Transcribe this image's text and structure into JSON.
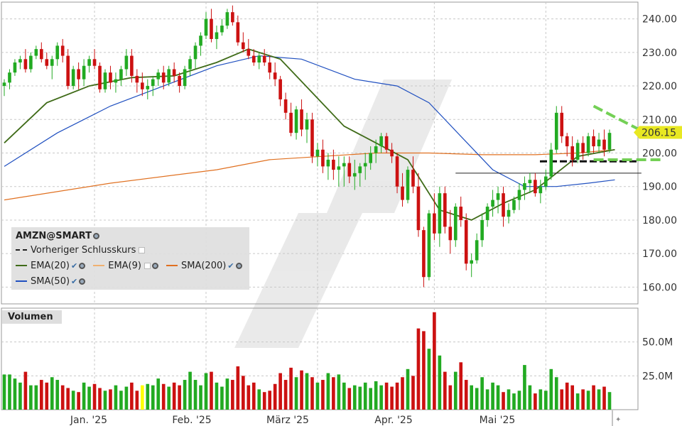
{
  "symbol": "AMZN@SMART",
  "volume_title": "Volumen",
  "last_price_label": "206.15",
  "legend": {
    "prev_close": "Vorheriger Schlusskurs",
    "ema20": "EMA(20)",
    "ema9": "EMA(9)",
    "sma200": "SMA(200)",
    "sma50": "SMA(50)"
  },
  "colors": {
    "up": "#22aa22",
    "down": "#cc1111",
    "ema20": "#3f6b18",
    "ema9": "#f0b070",
    "sma200": "#e07020",
    "sma50": "#2050c0",
    "trend": "#66cc44",
    "highlight": "#ffff00"
  },
  "chart_data": {
    "type": "candlestick",
    "price_ylim": [
      155,
      245
    ],
    "price_ticks": [
      "240.00",
      "230.00",
      "220.00",
      "210.00",
      "200.00",
      "190.00",
      "180.00",
      "170.00",
      "160.00"
    ],
    "volume_ticks": [
      "50.0M",
      "25.0M"
    ],
    "volume_ylim": [
      0,
      75
    ],
    "x_labels": [
      "Jan. '25",
      "Feb. '25",
      "März '25",
      "Apr. '25",
      "Mai '25"
    ],
    "grid": true,
    "prev_close": 197.5,
    "last_price": 206.15,
    "candles": [
      [
        220,
        222,
        217,
        221,
        26
      ],
      [
        221,
        225,
        219,
        224,
        26
      ],
      [
        224,
        228,
        223,
        227,
        23
      ],
      [
        227,
        229,
        225,
        228,
        20
      ],
      [
        228,
        231,
        224,
        225,
        28
      ],
      [
        225,
        230,
        224,
        229,
        18
      ],
      [
        229,
        232,
        228,
        231,
        18
      ],
      [
        231,
        233,
        227,
        228,
        22
      ],
      [
        228,
        230,
        225,
        226,
        20
      ],
      [
        226,
        229,
        222,
        228,
        24
      ],
      [
        228,
        233,
        226,
        232,
        22
      ],
      [
        232,
        234,
        227,
        229,
        18
      ],
      [
        229,
        231,
        219,
        220,
        16
      ],
      [
        220,
        226,
        219,
        225,
        14
      ],
      [
        225,
        227,
        219,
        222,
        13
      ],
      [
        222,
        228,
        220,
        226,
        20
      ],
      [
        226,
        229,
        224,
        228,
        17
      ],
      [
        228,
        231,
        225,
        226,
        19
      ],
      [
        226,
        227,
        218,
        219,
        16
      ],
      [
        219,
        225,
        218,
        224,
        14
      ],
      [
        224,
        226,
        219,
        221,
        15
      ],
      [
        221,
        224,
        218,
        222,
        18
      ],
      [
        222,
        226,
        220,
        225,
        14
      ],
      [
        225,
        231,
        223,
        229,
        17
      ],
      [
        229,
        231,
        221,
        223,
        20
      ],
      [
        223,
        225,
        218,
        221,
        14
      ],
      [
        221,
        224,
        217,
        219,
        18
      ],
      [
        219,
        222,
        216,
        220,
        19
      ],
      [
        220,
        223,
        217,
        222,
        18
      ],
      [
        222,
        225,
        220,
        224,
        23
      ],
      [
        224,
        226,
        219,
        221,
        19
      ],
      [
        221,
        226,
        220,
        225,
        17
      ],
      [
        225,
        227,
        221,
        223,
        20
      ],
      [
        223,
        224,
        218,
        220,
        18
      ],
      [
        220,
        226,
        219,
        225,
        22
      ],
      [
        225,
        229,
        223,
        228,
        28
      ],
      [
        228,
        233,
        225,
        232,
        22
      ],
      [
        232,
        236,
        229,
        235,
        18
      ],
      [
        235,
        242,
        234,
        240,
        27
      ],
      [
        240,
        243,
        233,
        234,
        28
      ],
      [
        234,
        238,
        231,
        236,
        20
      ],
      [
        236,
        240,
        235,
        238,
        17
      ],
      [
        238,
        243,
        237,
        242,
        23
      ],
      [
        242,
        244,
        238,
        239,
        22
      ],
      [
        239,
        241,
        232,
        233,
        32
      ],
      [
        233,
        236,
        230,
        231,
        25
      ],
      [
        231,
        234,
        228,
        229,
        18
      ],
      [
        229,
        231,
        226,
        227,
        20
      ],
      [
        227,
        230,
        225,
        229,
        15
      ],
      [
        229,
        231,
        226,
        227,
        13
      ],
      [
        227,
        229,
        222,
        224,
        14
      ],
      [
        224,
        227,
        220,
        222,
        19
      ],
      [
        222,
        223,
        214,
        216,
        27
      ],
      [
        216,
        218,
        210,
        212,
        22
      ],
      [
        212,
        215,
        205,
        206,
        31
      ],
      [
        206,
        214,
        204,
        213,
        24
      ],
      [
        213,
        216,
        205,
        207,
        29
      ],
      [
        207,
        212,
        203,
        210,
        27
      ],
      [
        210,
        212,
        197,
        199,
        24
      ],
      [
        199,
        203,
        196,
        201,
        20
      ],
      [
        201,
        204,
        194,
        196,
        22
      ],
      [
        196,
        200,
        192,
        198,
        27
      ],
      [
        198,
        201,
        192,
        195,
        24
      ],
      [
        195,
        199,
        190,
        196,
        26
      ],
      [
        196,
        199,
        190,
        197,
        20
      ],
      [
        197,
        199,
        191,
        193,
        16
      ],
      [
        193,
        198,
        189,
        194,
        18
      ],
      [
        194,
        197,
        190,
        196,
        17
      ],
      [
        196,
        200,
        192,
        197,
        20
      ],
      [
        197,
        202,
        195,
        200,
        16
      ],
      [
        200,
        204,
        197,
        202,
        21
      ],
      [
        202,
        206,
        200,
        205,
        18
      ],
      [
        205,
        206,
        200,
        201,
        20
      ],
      [
        201,
        203,
        197,
        199,
        17
      ],
      [
        199,
        200,
        188,
        190,
        20
      ],
      [
        190,
        194,
        184,
        186,
        24
      ],
      [
        186,
        196,
        185,
        195,
        30
      ],
      [
        195,
        199,
        188,
        190,
        25
      ],
      [
        190,
        194,
        175,
        177,
        60
      ],
      [
        177,
        178,
        160,
        163,
        58
      ],
      [
        163,
        183,
        162,
        182,
        45
      ],
      [
        182,
        188,
        174,
        176,
        72
      ],
      [
        176,
        190,
        172,
        188,
        40
      ],
      [
        188,
        190,
        176,
        178,
        28
      ],
      [
        178,
        183,
        170,
        174,
        18
      ],
      [
        174,
        185,
        172,
        184,
        28
      ],
      [
        184,
        187,
        178,
        180,
        35
      ],
      [
        180,
        182,
        165,
        167,
        22
      ],
      [
        167,
        170,
        163,
        168,
        18
      ],
      [
        168,
        176,
        167,
        174,
        16
      ],
      [
        174,
        182,
        172,
        180,
        24
      ],
      [
        180,
        185,
        178,
        184,
        15
      ],
      [
        184,
        189,
        181,
        186,
        20
      ],
      [
        186,
        190,
        182,
        188,
        18
      ],
      [
        188,
        190,
        178,
        181,
        13
      ],
      [
        181,
        185,
        179,
        183,
        15
      ],
      [
        183,
        187,
        182,
        186,
        12
      ],
      [
        186,
        191,
        183,
        189,
        14
      ],
      [
        189,
        193,
        186,
        191,
        33
      ],
      [
        191,
        194,
        188,
        192,
        18
      ],
      [
        192,
        194,
        187,
        188,
        12
      ],
      [
        188,
        192,
        185,
        190,
        15
      ],
      [
        190,
        195,
        189,
        193,
        14
      ],
      [
        193,
        203,
        192,
        201,
        30
      ],
      [
        201,
        214,
        200,
        212,
        24
      ],
      [
        212,
        214,
        203,
        205,
        15
      ],
      [
        205,
        206,
        199,
        202,
        20
      ],
      [
        202,
        205,
        196,
        198,
        18
      ],
      [
        198,
        204,
        197,
        203,
        12
      ],
      [
        203,
        205,
        198,
        200,
        15
      ],
      [
        200,
        206,
        199,
        205,
        14
      ],
      [
        205,
        207,
        200,
        202,
        18
      ],
      [
        202,
        206,
        200,
        204,
        15
      ],
      [
        204,
        207,
        199,
        201,
        17
      ],
      [
        201,
        207,
        200,
        206,
        13
      ]
    ],
    "ema20_points": [
      [
        0,
        203
      ],
      [
        8,
        215
      ],
      [
        16,
        220
      ],
      [
        24,
        222.5
      ],
      [
        32,
        223
      ],
      [
        40,
        227
      ],
      [
        46,
        231
      ],
      [
        52,
        228
      ],
      [
        58,
        218
      ],
      [
        64,
        208
      ],
      [
        70,
        203
      ],
      [
        76,
        198
      ],
      [
        82,
        183
      ],
      [
        88,
        180
      ],
      [
        94,
        185
      ],
      [
        100,
        189
      ],
      [
        104,
        194
      ],
      [
        108,
        199
      ],
      [
        115,
        201
      ]
    ],
    "sma50_points": [
      [
        0,
        196
      ],
      [
        10,
        206
      ],
      [
        20,
        214
      ],
      [
        30,
        220
      ],
      [
        40,
        226
      ],
      [
        48,
        229
      ],
      [
        56,
        228
      ],
      [
        66,
        222
      ],
      [
        74,
        220
      ],
      [
        80,
        215
      ],
      [
        86,
        205
      ],
      [
        92,
        195
      ],
      [
        98,
        190
      ],
      [
        104,
        190
      ],
      [
        110,
        191
      ],
      [
        115,
        192
      ]
    ],
    "sma200_points": [
      [
        0,
        186
      ],
      [
        20,
        191
      ],
      [
        40,
        195
      ],
      [
        50,
        198
      ],
      [
        60,
        199
      ],
      [
        70,
        200
      ],
      [
        80,
        200
      ],
      [
        90,
        199.5
      ],
      [
        100,
        199.5
      ],
      [
        108,
        200
      ],
      [
        115,
        201
      ]
    ],
    "trend_upper": [
      [
        111,
        214
      ],
      [
        120,
        206
      ]
    ],
    "trend_lower": [
      [
        111,
        198
      ],
      [
        123,
        198
      ]
    ],
    "support_line": [
      [
        85,
        194
      ],
      [
        120,
        194
      ]
    ]
  }
}
